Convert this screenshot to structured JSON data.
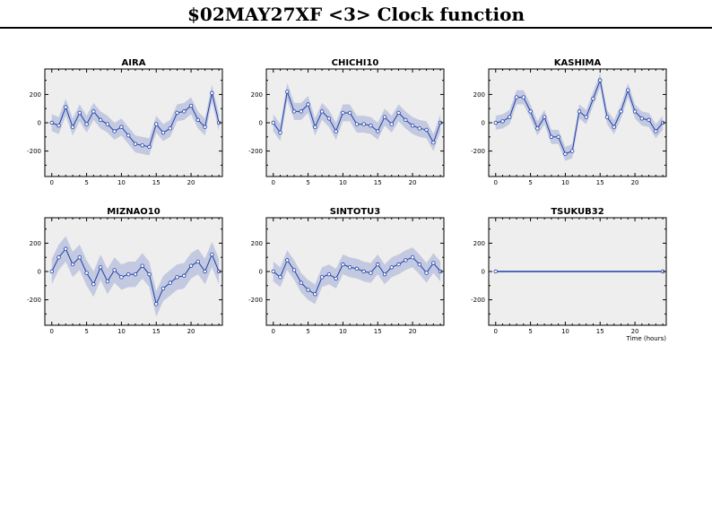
{
  "title": "$02MAY27XF <3>  Clock function",
  "colors": {
    "line": "#1f3fa8",
    "band": "#c3c9e0",
    "plot_bg": "#eeeeee",
    "frame": "#000000"
  },
  "chart_data": [
    {
      "type": "line",
      "title": "AIRA",
      "xlabel": "",
      "ylabel": "",
      "xlim": [
        -1,
        24.5
      ],
      "ylim": [
        -380,
        380
      ],
      "xticks": [
        0,
        5,
        10,
        15,
        20
      ],
      "yticks": [
        -200,
        0,
        200
      ],
      "x": [
        0,
        1,
        2,
        3,
        4,
        5,
        6,
        7,
        8,
        9,
        10,
        11,
        12,
        13,
        14,
        15,
        16,
        17,
        18,
        19,
        20,
        21,
        22,
        23,
        24
      ],
      "y": [
        0,
        -20,
        110,
        -30,
        70,
        -10,
        80,
        20,
        -10,
        -60,
        -30,
        -90,
        -150,
        -160,
        -170,
        -10,
        -70,
        -40,
        70,
        80,
        120,
        20,
        -30,
        210,
        0
      ],
      "band": 60
    },
    {
      "type": "line",
      "title": "CHICHI10",
      "xlabel": "",
      "ylabel": "",
      "xlim": [
        -1,
        24.5
      ],
      "ylim": [
        -380,
        380
      ],
      "xticks": [
        0,
        5,
        10,
        15,
        20
      ],
      "yticks": [
        -200,
        0,
        200
      ],
      "x": [
        0,
        1,
        2,
        3,
        4,
        5,
        6,
        7,
        8,
        9,
        10,
        11,
        12,
        13,
        14,
        15,
        16,
        17,
        18,
        19,
        20,
        21,
        22,
        23,
        24
      ],
      "y": [
        0,
        -70,
        220,
        80,
        80,
        130,
        -30,
        80,
        30,
        -60,
        70,
        70,
        -10,
        -10,
        -20,
        -60,
        40,
        -10,
        70,
        20,
        -20,
        -40,
        -50,
        -140,
        0
      ],
      "band": 60
    },
    {
      "type": "line",
      "title": "KASHIMA",
      "xlabel": "",
      "ylabel": "",
      "xlim": [
        -1,
        24.5
      ],
      "ylim": [
        -380,
        380
      ],
      "xticks": [
        0,
        5,
        10,
        15,
        20
      ],
      "yticks": [
        -200,
        0,
        200
      ],
      "x": [
        0,
        1,
        2,
        3,
        4,
        5,
        6,
        7,
        8,
        9,
        10,
        11,
        12,
        13,
        14,
        15,
        16,
        17,
        18,
        19,
        20,
        21,
        22,
        23,
        24
      ],
      "y": [
        0,
        10,
        40,
        180,
        180,
        80,
        -40,
        40,
        -100,
        -100,
        -220,
        -200,
        80,
        40,
        170,
        300,
        40,
        -30,
        80,
        230,
        80,
        30,
        20,
        -60,
        0
      ],
      "band": 50
    },
    {
      "type": "line",
      "title": "MIZNAO10",
      "xlabel": "",
      "ylabel": "",
      "xlim": [
        -1,
        24.5
      ],
      "ylim": [
        -380,
        380
      ],
      "xticks": [
        0,
        5,
        10,
        15,
        20
      ],
      "yticks": [
        -200,
        0,
        200
      ],
      "x": [
        0,
        1,
        2,
        3,
        4,
        5,
        6,
        7,
        8,
        9,
        10,
        11,
        12,
        13,
        14,
        15,
        16,
        17,
        18,
        19,
        20,
        21,
        22,
        23,
        24
      ],
      "y": [
        0,
        100,
        160,
        50,
        100,
        -10,
        -90,
        30,
        -70,
        10,
        -40,
        -20,
        -20,
        40,
        -20,
        -230,
        -120,
        -80,
        -40,
        -30,
        40,
        70,
        0,
        120,
        0
      ],
      "band": 90
    },
    {
      "type": "line",
      "title": "SINTOTU3",
      "xlabel": "",
      "ylabel": "",
      "xlim": [
        -1,
        24.5
      ],
      "ylim": [
        -380,
        380
      ],
      "xticks": [
        0,
        5,
        10,
        15,
        20
      ],
      "yticks": [
        -200,
        0,
        200
      ],
      "x": [
        0,
        1,
        2,
        3,
        4,
        5,
        6,
        7,
        8,
        9,
        10,
        11,
        12,
        13,
        14,
        15,
        16,
        17,
        18,
        19,
        20,
        21,
        22,
        23,
        24
      ],
      "y": [
        0,
        -40,
        80,
        10,
        -80,
        -130,
        -160,
        -40,
        -20,
        -50,
        50,
        30,
        20,
        0,
        -10,
        50,
        -20,
        30,
        50,
        80,
        100,
        50,
        -10,
        60,
        0
      ],
      "band": 70
    },
    {
      "type": "line",
      "title": "TSUKUB32",
      "xlabel": "Time (hours)",
      "ylabel": "",
      "xlim": [
        -1,
        24.5
      ],
      "ylim": [
        -380,
        380
      ],
      "xticks": [
        0,
        5,
        10,
        15,
        20
      ],
      "yticks": [
        -200,
        0,
        200
      ],
      "x": [
        0,
        24
      ],
      "y": [
        0,
        0
      ],
      "band": 0
    }
  ]
}
